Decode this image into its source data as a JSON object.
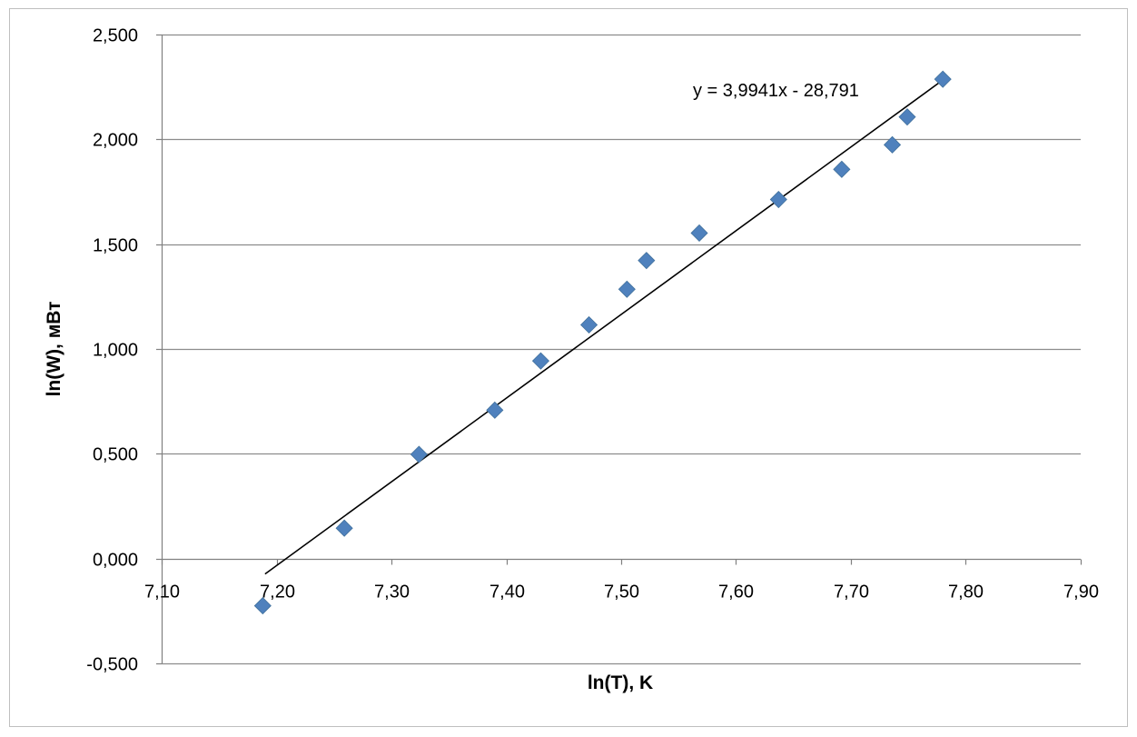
{
  "chart_data": {
    "type": "scatter",
    "title": "",
    "xlabel": "ln(T), K",
    "ylabel": "ln(W), мВт",
    "xlim": [
      7.1,
      7.9
    ],
    "ylim": [
      -0.5,
      2.5
    ],
    "x_ticks": [
      7.1,
      7.2,
      7.3,
      7.4,
      7.5,
      7.6,
      7.7,
      7.8,
      7.9
    ],
    "y_ticks": [
      -0.5,
      0.0,
      0.5,
      1.0,
      1.5,
      2.0,
      2.5
    ],
    "x_tick_labels": [
      "7,10",
      "7,20",
      "7,30",
      "7,40",
      "7,50",
      "7,60",
      "7,70",
      "7,80",
      "7,90"
    ],
    "y_tick_labels": [
      "-0,500",
      "0,000",
      "0,500",
      "1,000",
      "1,500",
      "2,000",
      "2,500"
    ],
    "grid": {
      "horizontal": true,
      "vertical": false
    },
    "legend": "none",
    "series": [
      {
        "marker": "diamond",
        "color": "#4F81BD",
        "points": [
          {
            "x": 7.188,
            "y": -0.225
          },
          {
            "x": 7.259,
            "y": 0.145
          },
          {
            "x": 7.324,
            "y": 0.497
          },
          {
            "x": 7.39,
            "y": 0.708
          },
          {
            "x": 7.43,
            "y": 0.943
          },
          {
            "x": 7.472,
            "y": 1.115
          },
          {
            "x": 7.505,
            "y": 1.285
          },
          {
            "x": 7.522,
            "y": 1.422
          },
          {
            "x": 7.568,
            "y": 1.553
          },
          {
            "x": 7.637,
            "y": 1.713
          },
          {
            "x": 7.692,
            "y": 1.857
          },
          {
            "x": 7.736,
            "y": 1.974
          },
          {
            "x": 7.749,
            "y": 2.107
          },
          {
            "x": 7.78,
            "y": 2.287
          }
        ]
      }
    ],
    "trendline": {
      "type": "linear",
      "slope": 3.9941,
      "intercept": -28.791,
      "x_range": [
        7.188,
        7.78
      ],
      "color": "#000000",
      "equation_label": "y = 3,9941x - 28,791"
    }
  }
}
